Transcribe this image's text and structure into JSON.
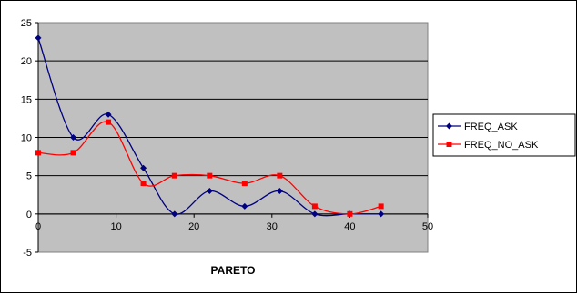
{
  "chart_data": {
    "type": "line",
    "title": "",
    "xlabel": "PARETO",
    "ylabel": "",
    "xlim": [
      0,
      50
    ],
    "ylim": [
      -5,
      25
    ],
    "xticks": [
      0,
      10,
      20,
      30,
      40,
      50
    ],
    "yticks": [
      -5,
      0,
      5,
      10,
      15,
      20,
      25
    ],
    "grid": "horizontal",
    "legend_position": "right",
    "plot_background": "#c0c0c0",
    "series": [
      {
        "name": "FREQ_ASK",
        "color": "#000080",
        "marker": "diamond",
        "x": [
          0,
          4.5,
          9,
          13.5,
          17.5,
          22,
          26.5,
          31,
          35.5,
          40,
          44
        ],
        "y": [
          23,
          10,
          13,
          6,
          0,
          3,
          1,
          3,
          0,
          0,
          0
        ]
      },
      {
        "name": "FREQ_NO_ASK",
        "color": "#ff0000",
        "marker": "square",
        "x": [
          0,
          4.5,
          9,
          13.5,
          17.5,
          22,
          26.5,
          31,
          35.5,
          40,
          44
        ],
        "y": [
          8,
          8,
          12,
          4,
          5,
          5,
          4,
          5,
          1,
          0,
          1
        ]
      }
    ]
  }
}
